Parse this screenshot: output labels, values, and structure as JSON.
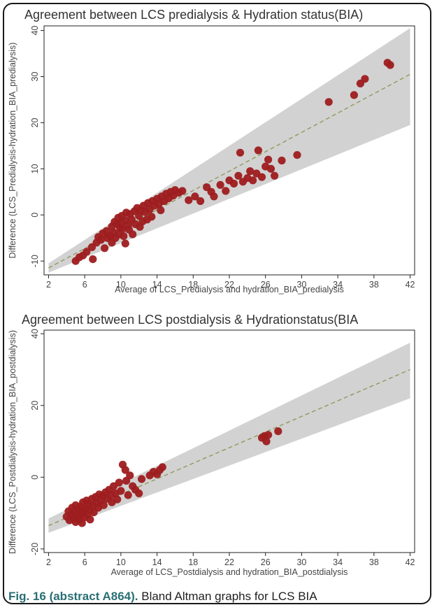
{
  "caption": {
    "figure_label": "Fig. 16 (abstract A864).",
    "text": "Bland Altman graphs for LCS BIA"
  },
  "colors": {
    "points": "#9e1c1f",
    "band": "#d2d2d2",
    "regression_line": "#8f9a5a",
    "caption_label": "#2a6f74"
  },
  "chart_data": [
    {
      "type": "scatter",
      "title": "Agreement between LCS predialysis & Hydration status(BIA)",
      "xlabel": "Average of LCS_Predialysis and hydration_BIA_predialysis",
      "ylabel": "Difference (LCS_Predialysis-hydration_BIA_predialysis)",
      "xlim": [
        1.5,
        42.5
      ],
      "ylim": [
        -13,
        41
      ],
      "x_ticks": [
        2,
        6,
        10,
        14,
        18,
        22,
        26,
        30,
        34,
        38,
        42
      ],
      "y_ticks": [
        -10,
        0,
        10,
        20,
        30,
        40
      ],
      "grid": false,
      "legend": "none",
      "regression_line": {
        "x": [
          2,
          42
        ],
        "y": [
          -11.5,
          30.5
        ],
        "style": "dashed"
      },
      "confidence_band": {
        "x": [
          2,
          42
        ],
        "lower": [
          -12.5,
          19.5
        ],
        "upper": [
          -10.5,
          40.5
        ]
      },
      "series": [
        {
          "points": [
            [
              5.0,
              -10.0
            ],
            [
              5.4,
              -9.2
            ],
            [
              5.8,
              -8.8
            ],
            [
              6.2,
              -8.0
            ],
            [
              6.8,
              -7.0
            ],
            [
              6.9,
              -9.6
            ],
            [
              7.3,
              -6.0
            ],
            [
              7.5,
              -4.8
            ],
            [
              7.8,
              -5.4
            ],
            [
              8.0,
              -4.0
            ],
            [
              8.2,
              -7.2
            ],
            [
              8.4,
              -3.5
            ],
            [
              8.5,
              -5.0
            ],
            [
              8.8,
              -4.6
            ],
            [
              9.0,
              -2.5
            ],
            [
              9.0,
              -6.0
            ],
            [
              9.2,
              -3.8
            ],
            [
              9.3,
              -1.5
            ],
            [
              9.4,
              -5.0
            ],
            [
              9.6,
              -2.0
            ],
            [
              9.7,
              -0.6
            ],
            [
              9.8,
              -4.2
            ],
            [
              9.9,
              -2.8
            ],
            [
              10.0,
              -1.8
            ],
            [
              10.1,
              -0.2
            ],
            [
              10.2,
              -3.0
            ],
            [
              10.3,
              -4.6
            ],
            [
              10.5,
              -1.2
            ],
            [
              10.5,
              -6.2
            ],
            [
              10.6,
              0.5
            ],
            [
              10.8,
              -2.2
            ],
            [
              10.9,
              -3.2
            ],
            [
              11.0,
              0.2
            ],
            [
              11.2,
              -1.0
            ],
            [
              11.3,
              -4.2
            ],
            [
              11.5,
              0.8
            ],
            [
              11.6,
              -2.0
            ],
            [
              11.8,
              1.5
            ],
            [
              12.0,
              -0.2
            ],
            [
              12.1,
              -2.6
            ],
            [
              12.2,
              1.0
            ],
            [
              12.4,
              -1.4
            ],
            [
              12.5,
              2.0
            ],
            [
              12.7,
              0.6
            ],
            [
              12.9,
              -1.0
            ],
            [
              13.0,
              2.6
            ],
            [
              13.2,
              1.2
            ],
            [
              13.4,
              -0.4
            ],
            [
              13.5,
              3.0
            ],
            [
              13.7,
              2.0
            ],
            [
              14.0,
              3.5
            ],
            [
              14.2,
              2.4
            ],
            [
              14.4,
              1.0
            ],
            [
              14.5,
              4.0
            ],
            [
              14.8,
              3.0
            ],
            [
              15.0,
              4.6
            ],
            [
              15.3,
              3.6
            ],
            [
              15.5,
              5.0
            ],
            [
              15.8,
              4.2
            ],
            [
              16.0,
              5.4
            ],
            [
              16.4,
              4.8
            ],
            [
              16.8,
              5.2
            ],
            [
              17.5,
              3.2
            ],
            [
              18.2,
              4.0
            ],
            [
              18.8,
              3.0
            ],
            [
              19.5,
              6.0
            ],
            [
              20.0,
              5.0
            ],
            [
              20.3,
              4.0
            ],
            [
              21.0,
              6.5
            ],
            [
              21.6,
              5.2
            ],
            [
              22.0,
              7.5
            ],
            [
              22.5,
              6.8
            ],
            [
              23.0,
              8.5
            ],
            [
              23.2,
              13.5
            ],
            [
              23.5,
              7.2
            ],
            [
              24.0,
              8.0
            ],
            [
              24.3,
              9.5
            ],
            [
              24.6,
              7.5
            ],
            [
              25.0,
              9.0
            ],
            [
              25.2,
              14.0
            ],
            [
              25.6,
              8.2
            ],
            [
              26.0,
              10.5
            ],
            [
              26.3,
              12.0
            ],
            [
              26.6,
              10.0
            ],
            [
              27.0,
              8.5
            ],
            [
              27.8,
              11.8
            ],
            [
              29.5,
              13.0
            ],
            [
              33.0,
              24.5
            ],
            [
              35.8,
              26.0
            ],
            [
              36.5,
              28.5
            ],
            [
              37.0,
              29.5
            ],
            [
              39.5,
              33.0
            ],
            [
              39.8,
              32.5
            ]
          ]
        }
      ]
    },
    {
      "type": "scatter",
      "title": "Agreement between LCS postdialysis & Hydrationstatus(BIA",
      "xlabel": "Average of LCS_Postdialysis and hydration_BIA_postdialysis",
      "ylabel": "Difference (LCS_Postdialysis-hydration_BIA_postdialysis)",
      "xlim": [
        1.5,
        42.5
      ],
      "ylim": [
        -21,
        41
      ],
      "x_ticks": [
        2,
        6,
        10,
        14,
        18,
        22,
        26,
        30,
        34,
        38,
        42
      ],
      "y_ticks": [
        -20,
        0,
        20,
        40
      ],
      "grid": false,
      "legend": "none",
      "regression_line": {
        "x": [
          2,
          42
        ],
        "y": [
          -13.5,
          30
        ],
        "style": "dashed"
      },
      "confidence_band": {
        "x": [
          2,
          42
        ],
        "lower": [
          -15.5,
          22
        ],
        "upper": [
          -11.5,
          37.5
        ]
      },
      "series": [
        {
          "points": [
            [
              4.0,
              -11.0
            ],
            [
              4.2,
              -9.5
            ],
            [
              4.3,
              -12.0
            ],
            [
              4.5,
              -10.5
            ],
            [
              4.6,
              -8.5
            ],
            [
              4.8,
              -11.5
            ],
            [
              4.9,
              -9.8
            ],
            [
              5.0,
              -12.5
            ],
            [
              5.0,
              -7.8
            ],
            [
              5.2,
              -10.8
            ],
            [
              5.3,
              -9.0
            ],
            [
              5.4,
              -11.8
            ],
            [
              5.5,
              -8.2
            ],
            [
              5.6,
              -10.2
            ],
            [
              5.7,
              -12.8
            ],
            [
              5.8,
              -7.0
            ],
            [
              5.9,
              -9.5
            ],
            [
              6.0,
              -11.2
            ],
            [
              6.1,
              -8.8
            ],
            [
              6.2,
              -6.5
            ],
            [
              6.3,
              -10.5
            ],
            [
              6.4,
              -7.5
            ],
            [
              6.5,
              -9.0
            ],
            [
              6.6,
              -11.8
            ],
            [
              6.8,
              -6.0
            ],
            [
              6.9,
              -8.0
            ],
            [
              7.0,
              -9.8
            ],
            [
              7.2,
              -5.5
            ],
            [
              7.3,
              -7.2
            ],
            [
              7.5,
              -8.5
            ],
            [
              7.6,
              -4.8
            ],
            [
              7.8,
              -6.5
            ],
            [
              8.0,
              -5.2
            ],
            [
              8.1,
              -7.8
            ],
            [
              8.3,
              -4.2
            ],
            [
              8.5,
              -6.0
            ],
            [
              8.7,
              -3.5
            ],
            [
              8.9,
              -5.0
            ],
            [
              9.0,
              -7.0
            ],
            [
              9.2,
              -2.5
            ],
            [
              9.4,
              -4.5
            ],
            [
              9.6,
              -6.2
            ],
            [
              9.8,
              -1.5
            ],
            [
              10.0,
              -3.8
            ],
            [
              10.2,
              3.5
            ],
            [
              10.5,
              2.0
            ],
            [
              10.6,
              -1.0
            ],
            [
              10.8,
              -5.0
            ],
            [
              11.0,
              0.5
            ],
            [
              11.3,
              -2.5
            ],
            [
              11.6,
              -3.5
            ],
            [
              12.0,
              -4.5
            ],
            [
              12.3,
              -0.5
            ],
            [
              13.2,
              0.5
            ],
            [
              13.6,
              1.5
            ],
            [
              14.0,
              0.8
            ],
            [
              14.3,
              2.0
            ],
            [
              14.6,
              2.8
            ],
            [
              25.6,
              11.0
            ],
            [
              25.9,
              11.5
            ],
            [
              26.1,
              10.0
            ],
            [
              26.3,
              11.8
            ],
            [
              27.4,
              12.8
            ]
          ]
        }
      ]
    }
  ]
}
